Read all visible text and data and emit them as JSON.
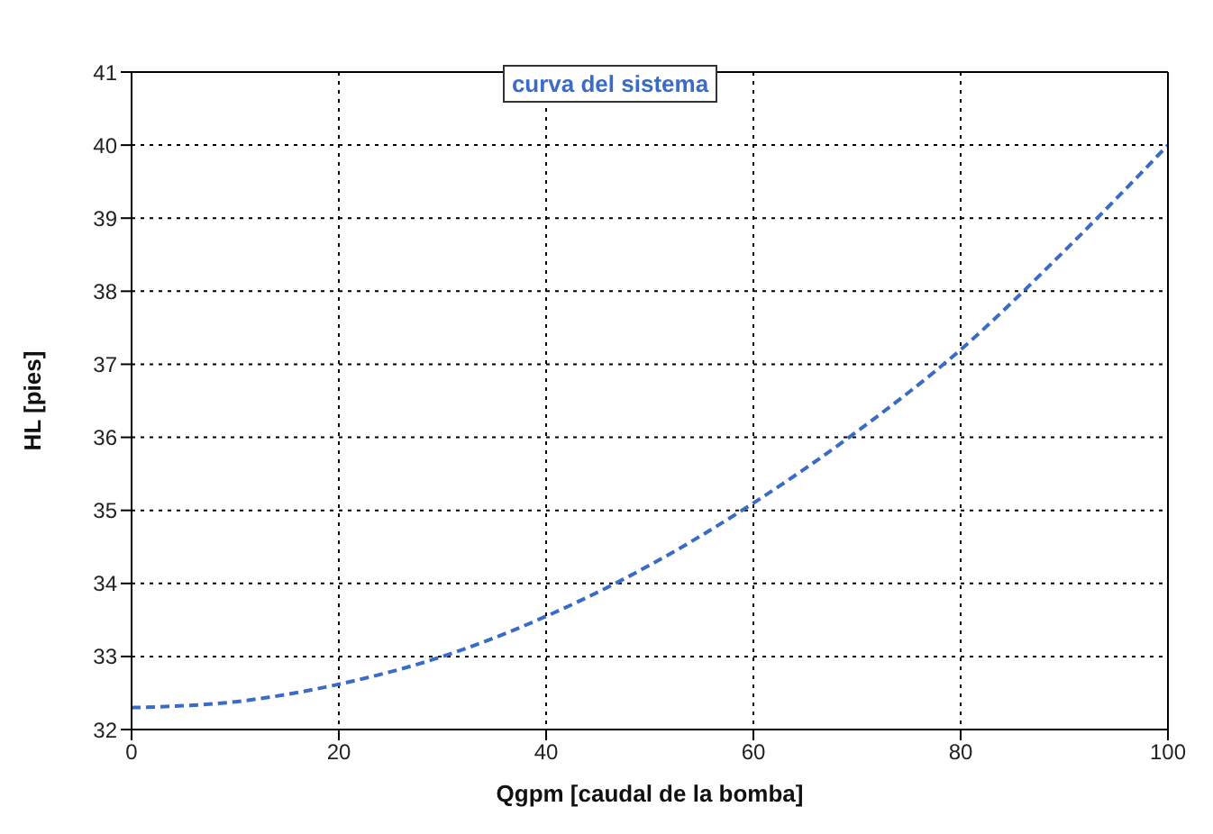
{
  "chart_data": {
    "type": "line",
    "xlabel": "Qgpm  [caudal de la bomba]",
    "ylabel": "HL  [pies]",
    "x": [
      0,
      10,
      20,
      30,
      40,
      50,
      60,
      70,
      80,
      90,
      100
    ],
    "series": [
      {
        "name": "curva del sistema",
        "color": "#3a6bc6",
        "values": [
          32.3,
          32.38,
          32.62,
          33.0,
          33.55,
          34.25,
          35.1,
          36.08,
          37.2,
          38.55,
          40.0
        ]
      }
    ],
    "xlim": [
      0,
      100
    ],
    "xticks": [
      0,
      20,
      40,
      60,
      80,
      100
    ],
    "ylim": [
      32,
      41
    ],
    "yticks": [
      32,
      33,
      34,
      35,
      36,
      37,
      38,
      39,
      40,
      41
    ],
    "grid": true,
    "legend": "top",
    "marker": "none",
    "line_style": "dashed"
  }
}
